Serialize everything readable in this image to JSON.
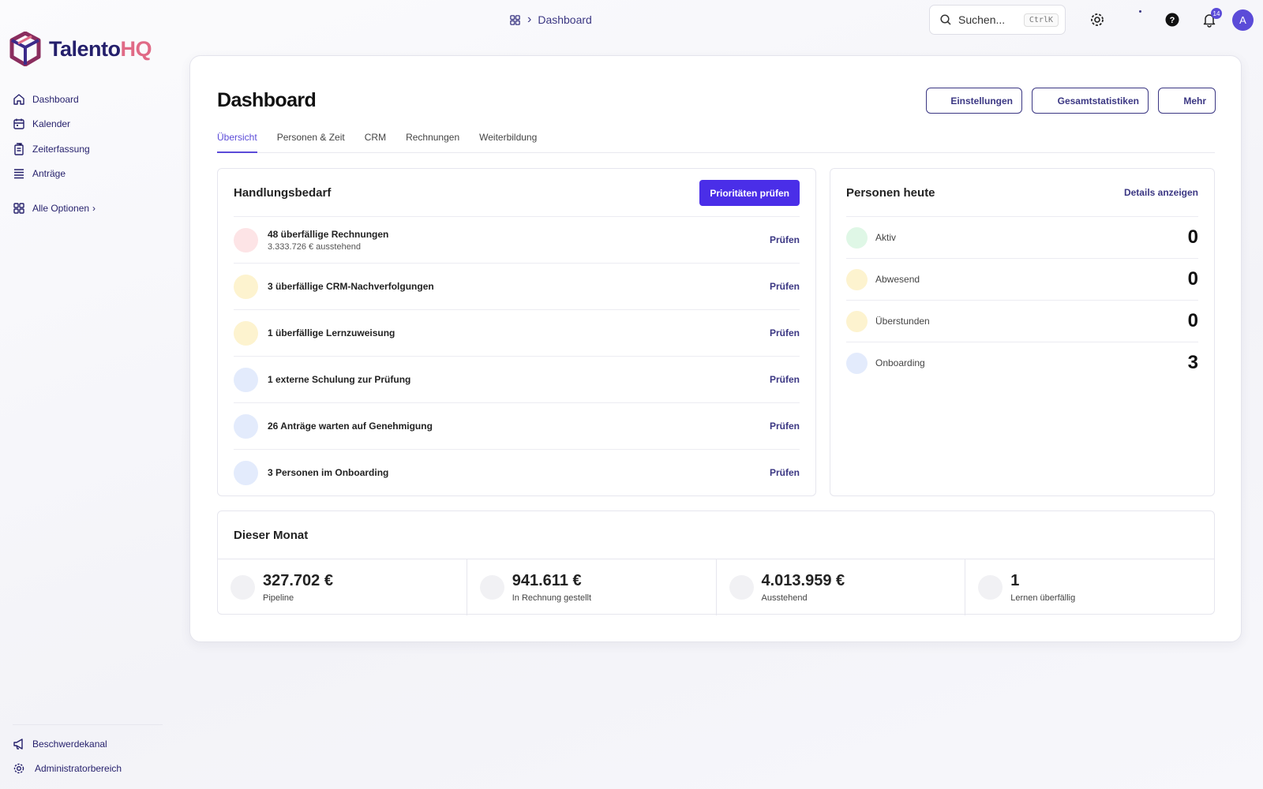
{
  "brand": {
    "name_part1": "Talento",
    "name_part2": "HQ"
  },
  "sidebar": {
    "items": [
      {
        "label": "Dashboard",
        "icon": "home-icon"
      },
      {
        "label": "Kalender",
        "icon": "calendar-icon"
      },
      {
        "label": "Zeiterfassung",
        "icon": "time-tracking-icon"
      },
      {
        "label": "Anträge",
        "icon": "requests-icon"
      }
    ],
    "all_options": "Alle Optionen",
    "bottom": [
      {
        "label": "Beschwerdekanal",
        "icon": "megaphone-icon"
      },
      {
        "label": "Administratorbereich",
        "icon": "gear-icon"
      }
    ]
  },
  "header": {
    "breadcrumb": "Dashboard",
    "search_placeholder": "Suchen...",
    "search_shortcut": "CtrlK",
    "notification_count": "14",
    "avatar_initial": "A"
  },
  "page": {
    "title": "Dashboard",
    "buttons": {
      "settings": "Einstellungen",
      "stats": "Gesamtstatistiken",
      "more": "Mehr"
    },
    "tabs": [
      "Übersicht",
      "Personen & Zeit",
      "CRM",
      "Rechnungen",
      "Weiterbildung"
    ]
  },
  "actions": {
    "title": "Handlungsbedarf",
    "button": "Prioritäten prüfen",
    "link_label": "Prüfen",
    "items": [
      {
        "title": "48 überfällige Rechnungen",
        "sub": "3.333.726 € ausstehend",
        "color": "#fde4e6"
      },
      {
        "title": "3 überfällige CRM-Nachverfolgungen",
        "sub": "",
        "color": "#fdf3cf"
      },
      {
        "title": "1 überfällige Lernzuweisung",
        "sub": "",
        "color": "#fdf3cf"
      },
      {
        "title": "1 externe Schulung zur Prüfung",
        "sub": "",
        "color": "#e3ebfc"
      },
      {
        "title": "26 Anträge warten auf Genehmigung",
        "sub": "",
        "color": "#e3ebfc"
      },
      {
        "title": "3 Personen im Onboarding",
        "sub": "",
        "color": "#e3ebfc"
      }
    ]
  },
  "people": {
    "title": "Personen heute",
    "link": "Details anzeigen",
    "items": [
      {
        "label": "Aktiv",
        "value": "0",
        "color": "#dff7e6"
      },
      {
        "label": "Abwesend",
        "value": "0",
        "color": "#fdf3cf"
      },
      {
        "label": "Überstunden",
        "value": "0",
        "color": "#fdf3cf"
      },
      {
        "label": "Onboarding",
        "value": "3",
        "color": "#e3ebfc"
      }
    ]
  },
  "month": {
    "title": "Dieser Monat",
    "stats": [
      {
        "value": "327.702 €",
        "label": "Pipeline"
      },
      {
        "value": "941.611 €",
        "label": "In Rechnung gestellt"
      },
      {
        "value": "4.013.959 €",
        "label": "Ausstehend"
      },
      {
        "value": "1",
        "label": "Lernen überfällig"
      }
    ]
  }
}
